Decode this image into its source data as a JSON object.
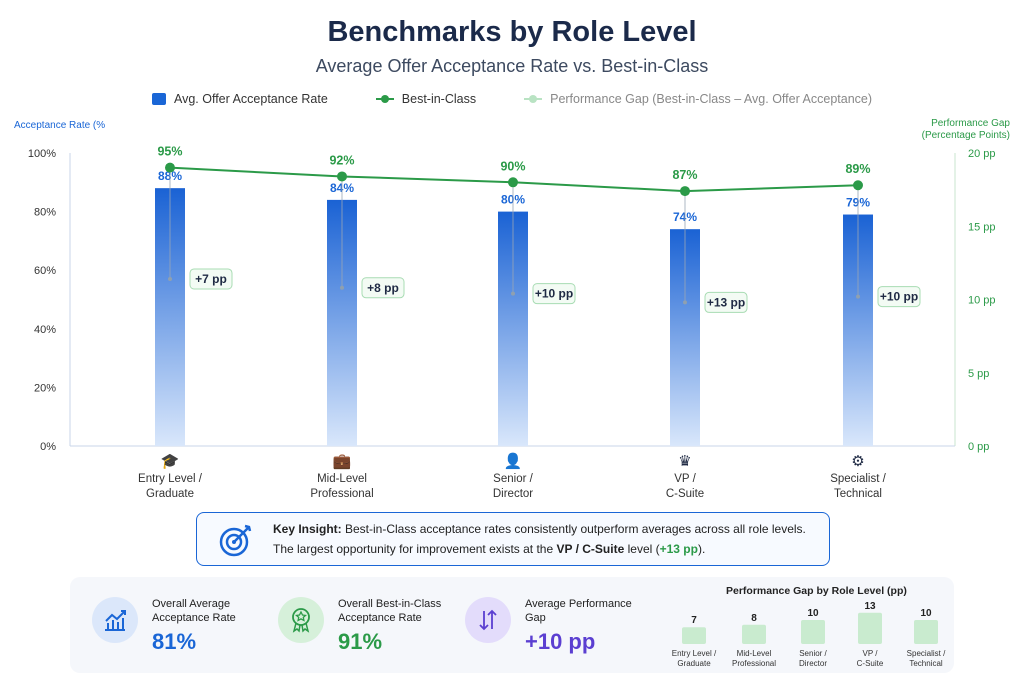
{
  "chart_data": {
    "type": "bar",
    "title": "Benchmarks by Role Level",
    "subtitle": "Average Offer Acceptance Rate vs. Best-in-Class",
    "categories": [
      "Entry Level / Graduate",
      "Mid-Level Professional",
      "Senior / Director",
      "VP / C-Suite",
      "Specialist / Technical"
    ],
    "category_lines": [
      [
        "Entry Level /",
        "Graduate"
      ],
      [
        "Mid-Level",
        "Professional"
      ],
      [
        "Senior /",
        "Director"
      ],
      [
        "VP /",
        "C-Suite"
      ],
      [
        "Specialist /",
        "Technical"
      ]
    ],
    "category_icons": [
      "graduation-cap-icon",
      "briefcase-icon",
      "person-icon",
      "crown-icon",
      "gear-icon"
    ],
    "series": [
      {
        "name": "Avg. Offer Acceptance Rate",
        "type": "bar",
        "values": [
          88,
          84,
          80,
          74,
          79
        ],
        "labels": [
          "88%",
          "84%",
          "80%",
          "74%",
          "79%"
        ],
        "color": "#1a66d6"
      },
      {
        "name": "Best-in-Class",
        "type": "line",
        "values": [
          95,
          92,
          90,
          87,
          89
        ],
        "labels": [
          "95%",
          "92%",
          "90%",
          "87%",
          "89%"
        ],
        "color": "#2b9a48"
      },
      {
        "name": "Performance Gap (Best-in-Class – Avg. Offer Acceptance)",
        "type": "gap",
        "values": [
          7,
          8,
          10,
          13,
          10
        ],
        "labels": [
          "+7 pp",
          "+8 pp",
          "+10 pp",
          "+13 pp",
          "+10 pp"
        ],
        "color": "#b9e3c3"
      }
    ],
    "ylabel": "Acceptance Rate (%",
    "y2label": [
      "Performance Gap",
      "(Percentage Points)"
    ],
    "ylim": [
      0,
      100
    ],
    "y2lim": [
      0,
      20
    ],
    "yticks": [
      "0%",
      "20%",
      "40%",
      "60%",
      "80%",
      "100%"
    ],
    "y2ticks": [
      "0 pp",
      "5 pp",
      "10 pp",
      "15 pp",
      "20 pp"
    ],
    "legend": "top"
  },
  "insight": {
    "bold": "Key Insight:",
    "line1": " Best-in-Class acceptance rates consistently outperform averages across all role levels.",
    "line2a": "The largest opportunity for improvement exists at the ",
    "line2b": "VP / C-Suite",
    "line2c": " level (",
    "line2d": "+13 pp",
    "line2e": ")."
  },
  "summary": {
    "cards": [
      {
        "label1": "Overall Average",
        "label2": "Acceptance Rate",
        "value": "81%",
        "color": "#1a66d6",
        "icon": "chart-growth-icon"
      },
      {
        "label1": "Overall Best-in-Class",
        "label2": "Acceptance Rate",
        "value": "91%",
        "color": "#2b9a48",
        "icon": "award-ribbon-icon"
      },
      {
        "label1": "Average Performance",
        "label2": "Gap",
        "value": "+10 pp",
        "color": "#5b3fd1",
        "icon": "arrows-up-down-icon"
      }
    ],
    "mini_chart": {
      "title": "Performance Gap by Role Level (pp)",
      "values": [
        7,
        8,
        10,
        13,
        10
      ],
      "labels": [
        "7",
        "8",
        "10",
        "13",
        "10"
      ]
    }
  }
}
